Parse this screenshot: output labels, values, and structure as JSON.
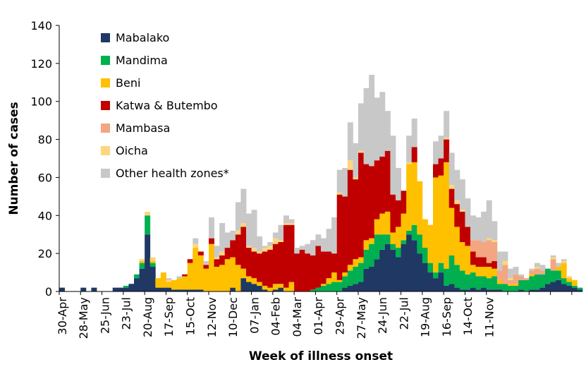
{
  "chart_data": {
    "type": "bar",
    "stacked": true,
    "xlabel": "Week of illness onset",
    "ylabel": "Number of cases",
    "ylim": [
      0,
      140
    ],
    "yticks": [
      0,
      20,
      40,
      60,
      80,
      100,
      120,
      140
    ],
    "grid": false,
    "legend_position": "top-left",
    "x_tick_labels": [
      "30-Apr",
      "28-May",
      "25-Jun",
      "23-Jul",
      "20-Aug",
      "17-Sep",
      "15-Oct",
      "12-Nov",
      "10-Dec",
      "07-Jan",
      "04-Feb",
      "04-Mar",
      "01-Apr",
      "29-Apr",
      "27-May",
      "24-Jun",
      "22-Jul",
      "19-Aug",
      "16-Sep",
      "14-Oct",
      "11-Nov"
    ],
    "series": [
      {
        "name": "Mabalako",
        "color": "#1f3864",
        "values": [
          2,
          0,
          0,
          0,
          2,
          0,
          2,
          0,
          0,
          0,
          2,
          2,
          2,
          4,
          7,
          12,
          30,
          13,
          2,
          2,
          2,
          1,
          1,
          1,
          1,
          1,
          1,
          0,
          0,
          0,
          0,
          0,
          2,
          0,
          7,
          5,
          4,
          3,
          1,
          0,
          1,
          2,
          0,
          0,
          0,
          0,
          0,
          0,
          0,
          0,
          0,
          0,
          0,
          2,
          3,
          4,
          5,
          12,
          13,
          17,
          22,
          25,
          22,
          18,
          25,
          30,
          27,
          20,
          15,
          10,
          7,
          10,
          3,
          4,
          2,
          1,
          1,
          2,
          1,
          2,
          1,
          1,
          1,
          0,
          0,
          0,
          1,
          0,
          1,
          1,
          2,
          4,
          5,
          6,
          4,
          3,
          2,
          1
        ]
      },
      {
        "name": "Mandima",
        "color": "#00b050",
        "values": [
          0,
          0,
          0,
          0,
          0,
          0,
          0,
          0,
          0,
          0,
          0,
          0,
          1,
          0,
          2,
          3,
          10,
          2,
          0,
          0,
          0,
          0,
          0,
          0,
          0,
          0,
          0,
          0,
          0,
          0,
          0,
          0,
          0,
          0,
          0,
          0,
          0,
          0,
          0,
          0,
          0,
          0,
          0,
          0,
          0,
          0,
          0,
          1,
          2,
          3,
          4,
          5,
          5,
          6,
          8,
          9,
          10,
          10,
          12,
          13,
          8,
          5,
          3,
          5,
          2,
          2,
          8,
          10,
          8,
          5,
          3,
          5,
          9,
          15,
          12,
          10,
          8,
          8,
          7,
          6,
          6,
          7,
          3,
          4,
          3,
          3,
          5,
          6,
          7,
          8,
          7,
          8,
          6,
          5,
          3,
          2,
          1,
          1
        ]
      },
      {
        "name": "Beni",
        "color": "#ffc000",
        "values": [
          0,
          0,
          0,
          0,
          0,
          0,
          0,
          0,
          0,
          0,
          0,
          0,
          0,
          0,
          0,
          1,
          0,
          1,
          5,
          8,
          3,
          5,
          6,
          7,
          14,
          22,
          18,
          12,
          25,
          13,
          14,
          17,
          16,
          14,
          5,
          3,
          3,
          2,
          2,
          2,
          3,
          2,
          2,
          5,
          0,
          0,
          0,
          0,
          0,
          1,
          3,
          5,
          1,
          2,
          3,
          4,
          3,
          5,
          3,
          8,
          11,
          12,
          6,
          11,
          14,
          35,
          33,
          28,
          15,
          20,
          50,
          46,
          56,
          25,
          20,
          15,
          15,
          4,
          5,
          5,
          6,
          4,
          2,
          0,
          1,
          1,
          0,
          0,
          1,
          0,
          0,
          0,
          0,
          2,
          8,
          2,
          3,
          0
        ]
      },
      {
        "name": "Katwa & Butembo",
        "color": "#c00000",
        "values": [
          0,
          0,
          0,
          0,
          0,
          0,
          0,
          0,
          0,
          0,
          0,
          0,
          0,
          0,
          0,
          0,
          0,
          0,
          0,
          0,
          0,
          0,
          0,
          1,
          2,
          0,
          2,
          2,
          3,
          4,
          5,
          6,
          9,
          16,
          22,
          15,
          14,
          15,
          18,
          20,
          21,
          22,
          33,
          30,
          20,
          22,
          20,
          18,
          22,
          17,
          14,
          10,
          45,
          40,
          50,
          42,
          55,
          40,
          38,
          31,
          30,
          32,
          20,
          14,
          12,
          0,
          8,
          0,
          0,
          0,
          7,
          9,
          12,
          10,
          12,
          16,
          10,
          7,
          5,
          5,
          2,
          4,
          0,
          0,
          0,
          0,
          0,
          0,
          0,
          0,
          0,
          0,
          0,
          0,
          0,
          0,
          0,
          0
        ]
      },
      {
        "name": "Mambasa",
        "color": "#f4a582",
        "values": [
          0,
          0,
          0,
          0,
          0,
          0,
          0,
          0,
          0,
          0,
          0,
          0,
          0,
          0,
          0,
          0,
          0,
          0,
          0,
          0,
          0,
          0,
          0,
          0,
          0,
          0,
          0,
          0,
          0,
          0,
          0,
          0,
          0,
          0,
          0,
          0,
          0,
          0,
          0,
          0,
          0,
          0,
          0,
          0,
          0,
          0,
          0,
          0,
          0,
          0,
          0,
          0,
          0,
          0,
          0,
          0,
          0,
          0,
          0,
          0,
          0,
          0,
          0,
          0,
          0,
          0,
          0,
          0,
          0,
          0,
          0,
          0,
          0,
          0,
          0,
          0,
          0,
          6,
          9,
          8,
          12,
          10,
          5,
          10,
          2,
          5,
          2,
          1,
          2,
          3,
          2,
          0,
          6,
          0,
          0,
          0,
          0,
          0
        ]
      },
      {
        "name": "Oicha",
        "color": "#ffd57f",
        "values": [
          0,
          0,
          0,
          0,
          0,
          0,
          0,
          0,
          0,
          0,
          0,
          0,
          0,
          0,
          0,
          1,
          2,
          2,
          0,
          0,
          1,
          0,
          0,
          0,
          0,
          2,
          0,
          0,
          0,
          1,
          2,
          0,
          0,
          2,
          2,
          1,
          2,
          1,
          2,
          2,
          3,
          1,
          1,
          1,
          0,
          0,
          0,
          0,
          0,
          0,
          0,
          0,
          1,
          0,
          5,
          1,
          1,
          0,
          0,
          0,
          0,
          0,
          0,
          0,
          0,
          1,
          0,
          0,
          0,
          0,
          0,
          0,
          1,
          2,
          2,
          1,
          0,
          0,
          0,
          0,
          1,
          1,
          0,
          2,
          1,
          0,
          0,
          0,
          0,
          1,
          0,
          0,
          1,
          0,
          1,
          1,
          0,
          0
        ]
      },
      {
        "name": "Other health zones*",
        "color": "#c8c8c8",
        "values": [
          0,
          0,
          0,
          0,
          0,
          0,
          0,
          0,
          0,
          0,
          0,
          0,
          0,
          0,
          0,
          0,
          0,
          0,
          0,
          0,
          1,
          0,
          1,
          0,
          0,
          3,
          0,
          2,
          11,
          6,
          15,
          8,
          5,
          15,
          18,
          17,
          20,
          8,
          1,
          2,
          3,
          8,
          4,
          2,
          3,
          2,
          5,
          8,
          6,
          7,
          12,
          19,
          12,
          15,
          20,
          18,
          25,
          40,
          48,
          33,
          34,
          21,
          31,
          17,
          0,
          14,
          15,
          0,
          0,
          0,
          12,
          12,
          14,
          17,
          16,
          16,
          15,
          13,
          12,
          16,
          20,
          10,
          10,
          5,
          5,
          4,
          1,
          0,
          1,
          2,
          3,
          0,
          1,
          2,
          1,
          0,
          0,
          0
        ]
      }
    ]
  }
}
